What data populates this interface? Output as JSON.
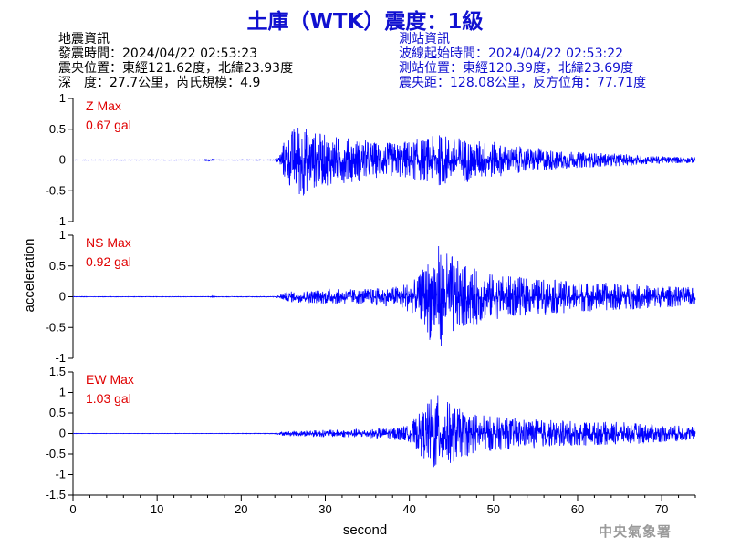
{
  "header": {
    "title": "土庫（WTK）震度：1級",
    "quake_info": [
      "地震資訊",
      "發震時間：2024/04/22 02:53:23",
      "震央位置：東經121.62度，北緯23.93度",
      "深　度：27.7公里，芮氏規模：4.9"
    ],
    "station_info": [
      "測站資訊",
      "波線起始時間：2024/04/22 02:53:22",
      "測站位置：東經120.39度，北緯23.69度",
      "震央距：128.08公里，反方位角：77.71度"
    ]
  },
  "colors": {
    "trace": "#0000ff",
    "max_label": "#e00000",
    "title": "#1010d0",
    "info_right": "#1010d0",
    "agency": "#9a9a9a"
  },
  "agency": "中央氣象署",
  "chart_data": [
    {
      "type": "line",
      "component": "Z",
      "max_label": "Z Max",
      "max_value": "0.67 gal",
      "ylim": [
        -1,
        1
      ],
      "yticks": [
        "1",
        "0.5",
        "0",
        "-0.5",
        "-1"
      ],
      "xlim": [
        0,
        74
      ],
      "envelope": {
        "t": [
          0,
          15.5,
          16.5,
          17,
          24,
          24.5,
          25,
          26,
          26.5,
          27,
          28,
          30,
          32,
          34,
          36,
          38,
          40,
          42,
          44,
          45,
          46,
          48,
          50,
          52,
          55,
          60,
          65,
          70,
          74
        ],
        "amp": [
          0.004,
          0.004,
          0.02,
          0.004,
          0.006,
          0.08,
          0.3,
          0.5,
          0.58,
          0.67,
          0.5,
          0.42,
          0.38,
          0.35,
          0.3,
          0.28,
          0.33,
          0.35,
          0.45,
          0.35,
          0.38,
          0.34,
          0.3,
          0.22,
          0.2,
          0.13,
          0.1,
          0.06,
          0.05
        ]
      }
    },
    {
      "type": "line",
      "component": "NS",
      "max_label": "NS Max",
      "max_value": "0.92 gal",
      "ylim": [
        -1,
        1
      ],
      "yticks": [
        "1",
        "0.5",
        "0",
        "-0.5",
        "-1"
      ],
      "xlim": [
        0,
        74
      ],
      "envelope": {
        "t": [
          0,
          16,
          16.5,
          17,
          24,
          25,
          26,
          30,
          35,
          38,
          41,
          42,
          43,
          44,
          45,
          46,
          47,
          49,
          51,
          55,
          60,
          65,
          70,
          74
        ],
        "amp": [
          0.004,
          0.004,
          0.012,
          0.004,
          0.006,
          0.06,
          0.09,
          0.12,
          0.13,
          0.16,
          0.3,
          0.55,
          0.92,
          0.78,
          0.7,
          0.55,
          0.5,
          0.4,
          0.35,
          0.3,
          0.25,
          0.22,
          0.18,
          0.15
        ]
      }
    },
    {
      "type": "line",
      "component": "EW",
      "max_label": "EW Max",
      "max_value": "1.03 gal",
      "ylim": [
        -1.5,
        1.5
      ],
      "yticks": [
        "1.5",
        "1",
        "0.5",
        "0",
        "-0.5",
        "-1",
        "-1.5"
      ],
      "xlim": [
        0,
        74
      ],
      "xticks": [
        0,
        10,
        20,
        30,
        40,
        50,
        60,
        70
      ],
      "envelope": {
        "t": [
          0,
          16,
          24,
          25,
          28,
          33,
          37,
          40,
          41,
          42,
          43,
          44,
          45,
          46,
          47,
          49,
          51,
          55,
          60,
          65,
          70,
          74
        ],
        "amp": [
          0.004,
          0.004,
          0.008,
          0.05,
          0.08,
          0.1,
          0.13,
          0.2,
          0.45,
          0.7,
          1.03,
          0.85,
          0.75,
          0.6,
          0.55,
          0.45,
          0.4,
          0.35,
          0.3,
          0.28,
          0.22,
          0.18
        ]
      }
    }
  ],
  "axes": {
    "xlabel": "second",
    "ylabel": "acceleration"
  }
}
